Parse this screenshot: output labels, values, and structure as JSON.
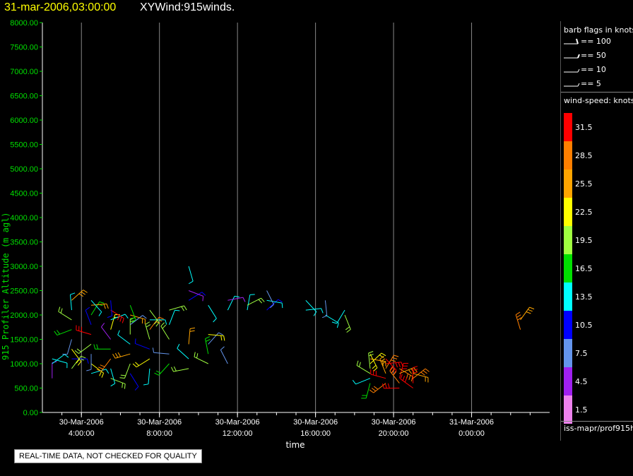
{
  "header": {
    "time": "31-mar-2006,03:00:00",
    "name": "XYWind:915winds."
  },
  "legend": {
    "barb_title": "barb flags in knots",
    "barbs": [
      {
        "label": "== 100"
      },
      {
        "label": "== 50"
      },
      {
        "label": "== 10"
      },
      {
        "label": "== 5"
      }
    ],
    "speed_title": "wind-speed: knots",
    "speed_scale": [
      {
        "value": "31.5",
        "color": "#ff0000"
      },
      {
        "value": "28.5",
        "color": "#ff7f00"
      },
      {
        "value": "25.5",
        "color": "#ffa500"
      },
      {
        "value": "22.5",
        "color": "#ffff00"
      },
      {
        "value": "19.5",
        "color": "#a0ff40"
      },
      {
        "value": "16.5",
        "color": "#00e000"
      },
      {
        "value": "13.5",
        "color": "#00ffff"
      },
      {
        "value": "10.5",
        "color": "#0000ff"
      },
      {
        "value": "7.5",
        "color": "#6495ed"
      },
      {
        "value": "4.5",
        "color": "#a020f0"
      },
      {
        "value": "1.5",
        "color": "#ee82ee"
      }
    ],
    "source": "iss-mapr/prof915h"
  },
  "notice": "REAL-TIME DATA, NOT CHECKED FOR QUALITY",
  "chart_data": {
    "type": "scatter",
    "title": "31-mar-2006,03:00:00  XYWind:915winds.",
    "xlabel": "time",
    "ylabel": "915 Profiler Altitude (m agl)",
    "ylim": [
      0,
      8000
    ],
    "xlim": [
      "30-Mar-2006 2:00:00",
      "31-Mar-2006 4:00:00"
    ],
    "yticks": [
      "0.00",
      "500.00",
      "1000.00",
      "1500.00",
      "2000.00",
      "2500.00",
      "3000.00",
      "3500.00",
      "4000.00",
      "4500.00",
      "5000.00",
      "5500.00",
      "6000.00",
      "6500.00",
      "7000.00",
      "7500.00",
      "8000.00"
    ],
    "xticks": [
      {
        "date": "30-Mar-2006",
        "time": "4:00:00",
        "hour": 4
      },
      {
        "date": "30-Mar-2006",
        "time": "8:00:00",
        "hour": 8
      },
      {
        "date": "30-Mar-2006",
        "time": "12:00:00",
        "hour": 12
      },
      {
        "date": "30-Mar-2006",
        "time": "16:00:00",
        "hour": 16
      },
      {
        "date": "30-Mar-2006",
        "time": "20:00:00",
        "hour": 20
      },
      {
        "date": "31-Mar-2006",
        "time": "0:00:00",
        "hour": 24
      }
    ],
    "grid": true,
    "series": [
      {
        "hour": 2.5,
        "points": [
          [
            700,
            3
          ],
          [
            1000,
            14
          ],
          [
            1100,
            12
          ]
        ]
      },
      {
        "hour": 3.5,
        "points": [
          [
            900,
            18
          ],
          [
            1100,
            10
          ],
          [
            1300,
            22
          ],
          [
            1500,
            8
          ],
          [
            1700,
            16
          ],
          [
            1900,
            20
          ],
          [
            2100,
            12
          ],
          [
            2300,
            26
          ]
        ]
      },
      {
        "hour": 4.5,
        "points": [
          [
            800,
            14
          ],
          [
            1000,
            22
          ],
          [
            1200,
            6
          ],
          [
            1400,
            18
          ],
          [
            1600,
            30
          ],
          [
            1800,
            10
          ],
          [
            2000,
            16
          ],
          [
            2200,
            24
          ],
          [
            2300,
            12
          ]
        ]
      },
      {
        "hour": 5.5,
        "points": [
          [
            700,
            20
          ],
          [
            900,
            12
          ],
          [
            1100,
            28
          ],
          [
            1300,
            16
          ],
          [
            1500,
            4
          ],
          [
            1700,
            22
          ],
          [
            1900,
            14
          ],
          [
            2100,
            30
          ],
          [
            2300,
            10
          ]
        ]
      },
      {
        "hour": 6.5,
        "points": [
          [
            800,
            10
          ],
          [
            1000,
            18
          ],
          [
            1200,
            26
          ],
          [
            1400,
            12
          ],
          [
            1600,
            20
          ],
          [
            1800,
            6
          ],
          [
            2000,
            24
          ],
          [
            2200,
            16
          ]
        ]
      },
      {
        "hour": 7.5,
        "points": [
          [
            900,
            14
          ],
          [
            1100,
            22
          ],
          [
            1300,
            10
          ],
          [
            1500,
            18
          ],
          [
            1700,
            28
          ],
          [
            1900,
            12
          ],
          [
            2100,
            20
          ]
        ]
      },
      {
        "hour": 8.5,
        "points": [
          [
            1000,
            16
          ],
          [
            1200,
            8
          ],
          [
            1500,
            20
          ],
          [
            1800,
            12
          ],
          [
            2100,
            18
          ]
        ]
      },
      {
        "hour": 9.5,
        "points": [
          [
            900,
            20
          ],
          [
            1100,
            14
          ],
          [
            1400,
            24
          ],
          [
            2300,
            10
          ],
          [
            2500,
            4
          ],
          [
            3000,
            14
          ]
        ]
      },
      {
        "hour": 10.5,
        "points": [
          [
            1000,
            20
          ],
          [
            1200,
            16
          ],
          [
            1400,
            8
          ],
          [
            1600,
            22
          ],
          [
            2200,
            12
          ]
        ]
      },
      {
        "hour": 11.5,
        "points": [
          [
            1000,
            8
          ],
          [
            2100,
            12
          ],
          [
            2300,
            4
          ]
        ]
      },
      {
        "hour": 12.5,
        "points": [
          [
            2100,
            14
          ],
          [
            2200,
            20
          ]
        ]
      },
      {
        "hour": 13.5,
        "points": [
          [
            2100,
            10
          ],
          [
            2300,
            12
          ],
          [
            2500,
            6
          ]
        ]
      },
      {
        "hour": 15.5,
        "points": [
          [
            2100,
            12
          ],
          [
            2300,
            14
          ]
        ]
      },
      {
        "hour": 16.5,
        "points": [
          [
            2000,
            14
          ],
          [
            2300,
            6
          ]
        ]
      },
      {
        "hour": 17.5,
        "points": [
          [
            2000,
            18
          ],
          [
            2100,
            12
          ]
        ]
      },
      {
        "hour": 18.8,
        "points": [
          [
            600,
            16
          ],
          [
            700,
            14
          ],
          [
            800,
            20
          ],
          [
            900,
            18
          ],
          [
            1000,
            22
          ],
          [
            1100,
            24
          ],
          [
            1200,
            22
          ]
        ]
      },
      {
        "hour": 19.6,
        "points": [
          [
            600,
            28
          ],
          [
            700,
            30
          ],
          [
            800,
            26
          ],
          [
            900,
            28
          ],
          [
            1000,
            30
          ],
          [
            1100,
            32
          ]
        ]
      },
      {
        "hour": 20.3,
        "points": [
          [
            500,
            30
          ],
          [
            600,
            28
          ],
          [
            700,
            32
          ],
          [
            800,
            26
          ],
          [
            900,
            28
          ]
        ]
      },
      {
        "hour": 21.0,
        "points": [
          [
            500,
            32
          ],
          [
            600,
            30
          ],
          [
            700,
            28
          ],
          [
            800,
            24
          ]
        ]
      },
      {
        "hour": 26.5,
        "points": [
          [
            1700,
            28
          ],
          [
            1900,
            26
          ]
        ]
      }
    ]
  }
}
